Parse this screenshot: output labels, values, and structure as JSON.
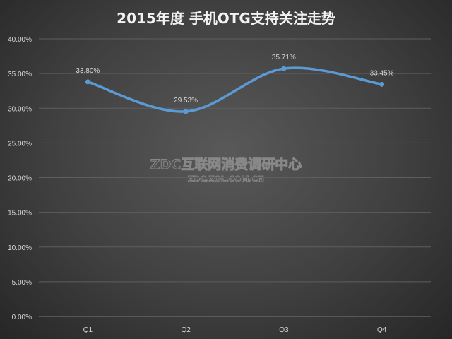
{
  "chart_data": {
    "type": "line",
    "title": "2015年度 手机OTG支持关注走势",
    "categories": [
      "Q1",
      "Q2",
      "Q3",
      "Q4"
    ],
    "values": [
      33.8,
      29.53,
      35.71,
      33.45
    ],
    "data_labels": [
      "33.80%",
      "29.53%",
      "35.71%",
      "33.45%"
    ],
    "ylim": [
      0,
      40
    ],
    "yticks": [
      "0.00%",
      "5.00%",
      "10.00%",
      "15.00%",
      "20.00%",
      "25.00%",
      "30.00%",
      "35.00%",
      "40.00%"
    ],
    "grid": true,
    "smooth": true,
    "line_color": "#5b9bd5"
  },
  "watermark": {
    "line1": "ZDC互联网消费调研中心",
    "line2": "ZDC.ZOL.COM.CN"
  }
}
